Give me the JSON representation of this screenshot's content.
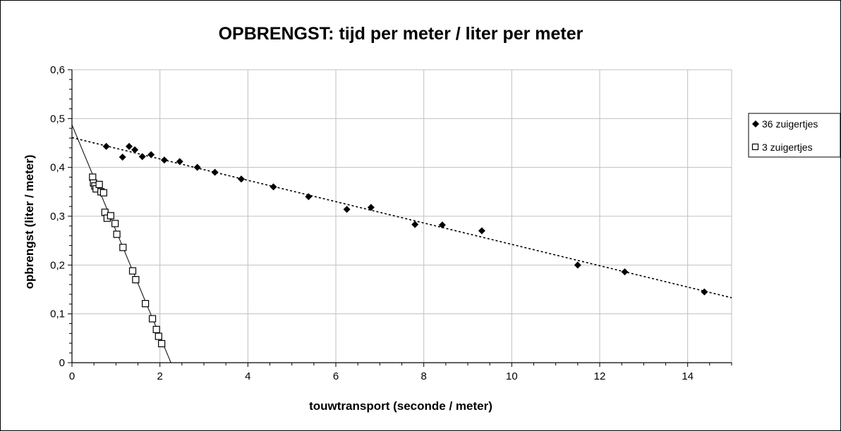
{
  "chart_data": {
    "type": "scatter",
    "title": "OPBRENGST: tijd per meter / liter per meter",
    "xlabel": "touwtransport (seconde / meter)",
    "ylabel": "opbrengst (liter / meter)",
    "xlim": [
      0,
      15
    ],
    "ylim": [
      0,
      0.6
    ],
    "x_ticks": [
      0,
      2,
      4,
      6,
      8,
      10,
      12,
      14
    ],
    "x_tick_labels": [
      "0",
      "2",
      "4",
      "6",
      "8",
      "10",
      "12",
      "14"
    ],
    "y_ticks": [
      0,
      0.1,
      0.2,
      0.3,
      0.4,
      0.5,
      0.6
    ],
    "y_tick_labels": [
      "0",
      "0,1",
      "0,2",
      "0,3",
      "0,4",
      "0,5",
      "0,6"
    ],
    "grid": true,
    "legend_position": "right",
    "series": [
      {
        "name": "36 zuigertjes",
        "marker": "diamond",
        "color": "#000000",
        "x": [
          0.78,
          1.15,
          1.3,
          1.43,
          1.6,
          1.8,
          2.1,
          2.45,
          2.85,
          3.25,
          3.85,
          4.58,
          5.38,
          6.25,
          6.8,
          7.8,
          8.42,
          9.32,
          11.5,
          12.57,
          14.38
        ],
        "y": [
          0.443,
          0.421,
          0.443,
          0.436,
          0.422,
          0.426,
          0.415,
          0.412,
          0.4,
          0.39,
          0.376,
          0.36,
          0.34,
          0.314,
          0.318,
          0.283,
          0.282,
          0.27,
          0.2,
          0.186,
          0.145
        ],
        "trendline": {
          "style": "dotted",
          "x": [
            0.0,
            15.0
          ],
          "y": [
            0.461,
            0.133
          ]
        }
      },
      {
        "name": "3 zuigertjes",
        "marker": "square-open",
        "color": "#000000",
        "x": [
          0.47,
          0.49,
          0.52,
          0.55,
          0.62,
          0.66,
          0.72,
          0.75,
          0.8,
          0.88,
          0.98,
          1.02,
          1.16,
          1.38,
          1.45,
          1.67,
          1.83,
          1.92,
          1.97,
          2.04
        ],
        "y": [
          0.38,
          0.368,
          0.362,
          0.356,
          0.365,
          0.35,
          0.348,
          0.308,
          0.296,
          0.301,
          0.285,
          0.263,
          0.236,
          0.188,
          0.17,
          0.121,
          0.09,
          0.068,
          0.054,
          0.039
        ],
        "trendline": {
          "style": "solid",
          "x": [
            0.0,
            2.25
          ],
          "y": [
            0.487,
            0.0
          ]
        }
      }
    ]
  }
}
